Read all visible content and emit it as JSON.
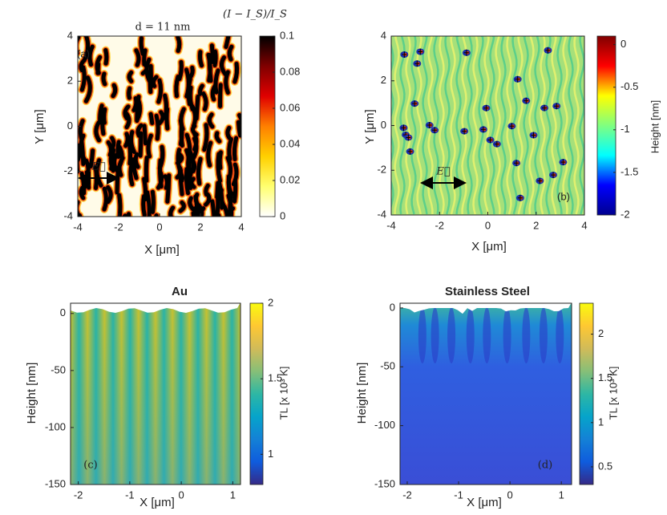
{
  "chart_data": [
    {
      "type": "heatmap",
      "title": "d = 11 nm",
      "panel_label": "(a)",
      "annotation": "E⃗",
      "xlabel": "X [μm]",
      "ylabel": "Y [μm]",
      "colorbar_label": "(I − I_S)/I_S",
      "xlim": [
        -4,
        4
      ],
      "ylim": [
        -4,
        4
      ],
      "xticks": [
        -4,
        -2,
        0,
        2,
        4
      ],
      "yticks": [
        -4,
        -2,
        0,
        2,
        4
      ],
      "clim": [
        0,
        0.1
      ],
      "cticks": [
        0,
        0.02,
        0.04,
        0.06,
        0.08,
        0.1
      ],
      "colormap": [
        "#ffffff",
        "#ffff70",
        "#ffd000",
        "#ff8000",
        "#e00000",
        "#800000",
        "#000000"
      ]
    },
    {
      "type": "heatmap",
      "panel_label": "(b)",
      "annotation": "E⃗",
      "xlabel": "X [μm]",
      "ylabel": "Y [μm]",
      "colorbar_label": "Height [nm]",
      "xlim": [
        -4,
        4
      ],
      "ylim": [
        -4,
        4
      ],
      "xticks": [
        -4,
        -2,
        0,
        2,
        4
      ],
      "yticks": [
        -4,
        -2,
        0,
        2,
        4
      ],
      "clim": [
        -2,
        0.1
      ],
      "cticks": [
        -2,
        -1.5,
        -1,
        -0.5,
        0
      ],
      "colormap": [
        "#00008f",
        "#0000ff",
        "#00ffff",
        "#80ff80",
        "#ffff00",
        "#ff0000",
        "#800000"
      ]
    },
    {
      "type": "heatmap",
      "title": "Au",
      "panel_label": "(c)",
      "xlabel": "X [μm]",
      "ylabel": "Height [nm]",
      "colorbar_label": "TL [x 10³ K]",
      "xlim": [
        -2.15,
        1.15
      ],
      "ylim": [
        -150,
        9
      ],
      "xticks": [
        -2,
        -1,
        0,
        1
      ],
      "yticks": [
        -150,
        -100,
        -50,
        0
      ],
      "clim": [
        0.8,
        2
      ],
      "cticks": [
        1,
        1.5,
        2
      ],
      "colormap": [
        "#352a87",
        "#0f5cdd",
        "#1481d6",
        "#06a4ca",
        "#2eb7a4",
        "#87bf77",
        "#d1bb59",
        "#fec832",
        "#f9fb0e"
      ]
    },
    {
      "type": "heatmap",
      "title": "Stainless Steel",
      "panel_label": "(d)",
      "xlabel": "X [μm]",
      "ylabel": "Height [nm]",
      "colorbar_label": "TL [x 10³ K]",
      "xlim": [
        -2.14,
        1.2
      ],
      "ylim": [
        -150,
        4
      ],
      "xticks": [
        -2,
        -1,
        0,
        1
      ],
      "yticks": [
        -150,
        -100,
        -50,
        0
      ],
      "clim": [
        0.3,
        2.35
      ],
      "cticks": [
        0.5,
        1,
        1.5,
        2
      ],
      "colormap": [
        "#352a87",
        "#0f5cdd",
        "#1481d6",
        "#06a4ca",
        "#2eb7a4",
        "#87bf77",
        "#d1bb59",
        "#fec832",
        "#f9fb0e"
      ]
    }
  ]
}
